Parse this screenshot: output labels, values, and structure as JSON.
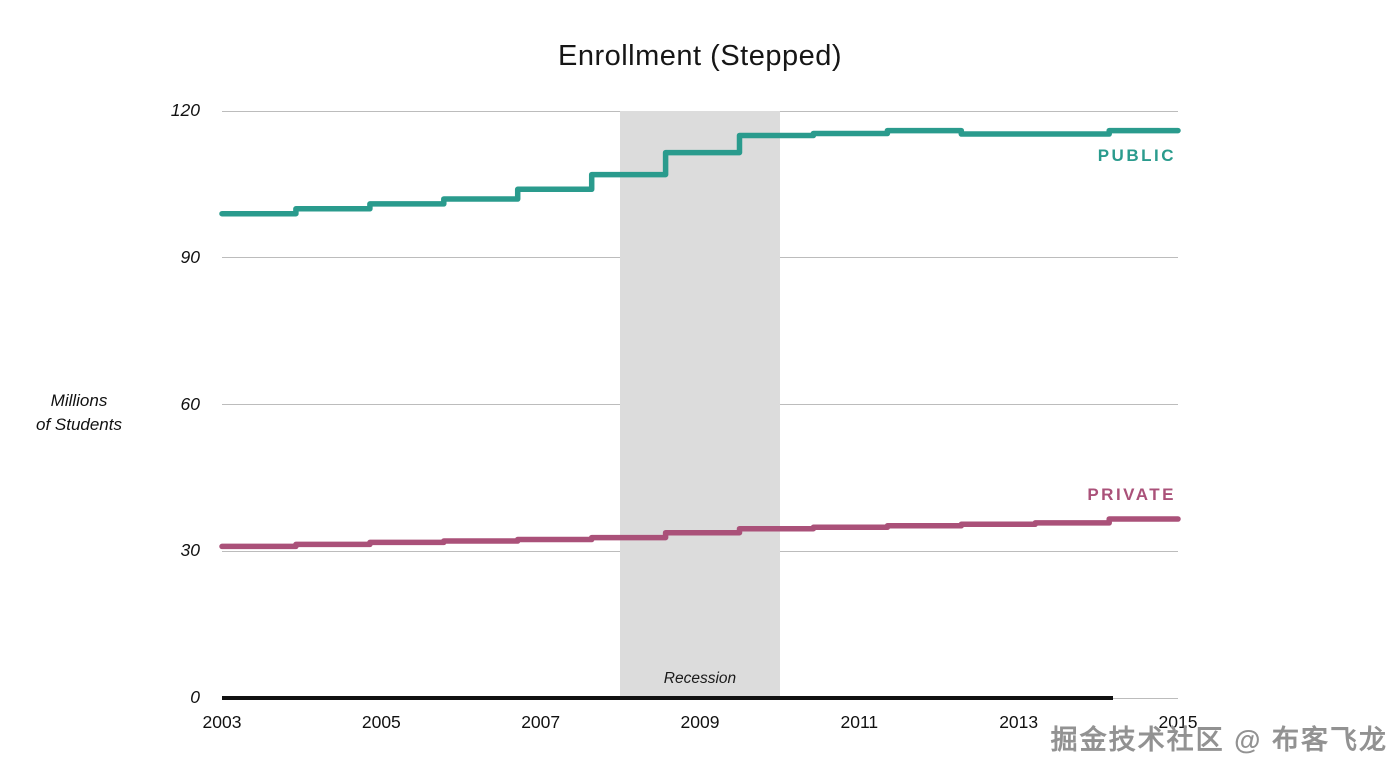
{
  "title": "Enrollment (Stepped)",
  "y_axis": {
    "title_line1": "Millions",
    "title_line2": "of Students",
    "ticks": [
      120,
      90,
      60,
      30,
      0
    ]
  },
  "x_axis": {
    "ticks": [
      2003,
      2005,
      2007,
      2009,
      2011,
      2013,
      2015
    ]
  },
  "series_labels": {
    "public": "PUBLIC",
    "private": "PRIVATE"
  },
  "annotations": {
    "recession_label": "Recession"
  },
  "watermark": "掘金技术社区 @ 布客飞龙",
  "colors": {
    "public_line": "#2a9b8d",
    "private_line": "#aa5179",
    "recession_band": "#dcdcdc",
    "gridline": "#bcbcbc",
    "axis_line": "#111111"
  },
  "chart_data": {
    "type": "line",
    "subtype": "stepped",
    "title": "Enrollment (Stepped)",
    "xlabel": "",
    "ylabel": "Millions of Students",
    "ylim": [
      0,
      120
    ],
    "xlim": [
      2003,
      2015
    ],
    "grid": "horizontal",
    "legend_position": "direct-labels-right",
    "x": [
      2003,
      2004,
      2005,
      2006,
      2007,
      2008,
      2009,
      2010,
      2011,
      2012,
      2013,
      2014,
      2015
    ],
    "series": [
      {
        "name": "PUBLIC",
        "color": "#2a9b8d",
        "values": [
          99,
          100,
          101,
          102,
          104,
          107,
          111.5,
          115,
          115.4,
          116,
          115.3,
          115.3,
          116
        ]
      },
      {
        "name": "PRIVATE",
        "color": "#aa5179",
        "values": [
          31,
          31.4,
          31.8,
          32.1,
          32.4,
          32.8,
          33.8,
          34.6,
          34.9,
          35.2,
          35.5,
          35.8,
          36.6
        ]
      }
    ],
    "recession_band": {
      "start": 2008,
      "end": 2010,
      "label": "Recession"
    }
  }
}
